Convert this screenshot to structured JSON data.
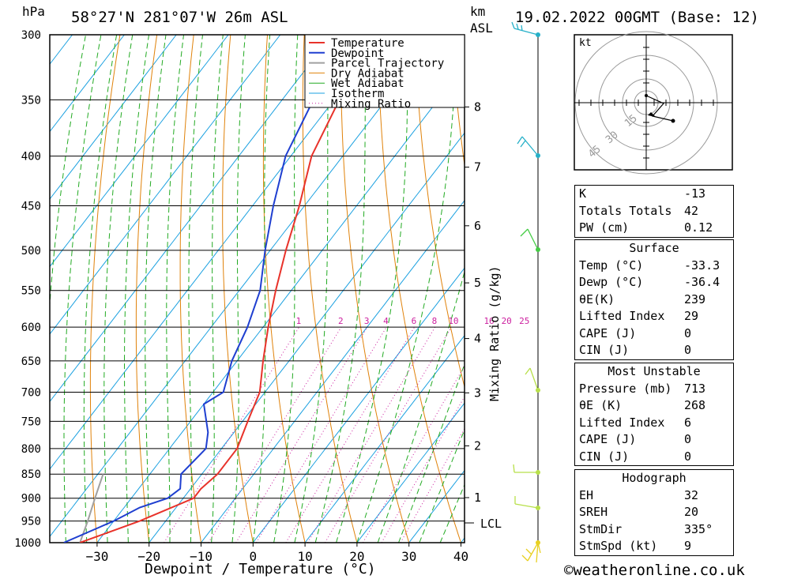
{
  "header": {
    "location": "58°27'N  281°07'W  26m  ASL",
    "datetime": "19.02.2022  00GMT  (Base: 12)",
    "hpa_label": "hPa",
    "km_label": "km",
    "asl_label": "ASL"
  },
  "chart_data": {
    "type": "skew-t",
    "xlabel": "Dewpoint / Temperature (°C)",
    "y2label": "Mixing Ratio (g/kg)",
    "pressure_levels": [
      300,
      350,
      400,
      450,
      500,
      550,
      600,
      650,
      700,
      750,
      800,
      850,
      900,
      950,
      1000
    ],
    "temp_ticks": [
      -30,
      -20,
      -10,
      0,
      10,
      20,
      30,
      40
    ],
    "km_ticks": [
      1,
      2,
      3,
      4,
      5,
      6,
      7,
      8
    ],
    "lcl_label": "LCL",
    "mixing_ratio_labels": [
      "1",
      "2",
      "3",
      "4",
      "6",
      "8",
      "10",
      "16",
      "20",
      "25"
    ],
    "legend": [
      "Temperature",
      "Dewpoint",
      "Parcel Trajectory",
      "Dry Adiabat",
      "Wet Adiabat",
      "Isotherm",
      "Mixing Ratio"
    ],
    "colors": {
      "temperature": "#e8322a",
      "dewpoint": "#1f3fd0",
      "parcel": "#a0a0a0",
      "dry_adiabat": "#e0820a",
      "wet_adiabat": "#22aa22",
      "isotherm": "#1aa0e0",
      "mixing_ratio": "#cc1f9f"
    },
    "temperature": [
      {
        "p": 1000,
        "t": -33.3
      },
      {
        "p": 950,
        "t": -25
      },
      {
        "p": 900,
        "t": -18
      },
      {
        "p": 880,
        "t": -18
      },
      {
        "p": 850,
        "t": -17
      },
      {
        "p": 800,
        "t": -17
      },
      {
        "p": 750,
        "t": -19
      },
      {
        "p": 700,
        "t": -21
      },
      {
        "p": 650,
        "t": -25
      },
      {
        "p": 600,
        "t": -29
      },
      {
        "p": 550,
        "t": -33
      },
      {
        "p": 500,
        "t": -37
      },
      {
        "p": 450,
        "t": -41
      },
      {
        "p": 400,
        "t": -46
      },
      {
        "p": 350,
        "t": -49
      },
      {
        "p": 320,
        "t": -51
      },
      {
        "p": 310,
        "t": -50
      },
      {
        "p": 300,
        "t": -50
      }
    ],
    "dewpoint": [
      {
        "p": 1000,
        "t": -36.4
      },
      {
        "p": 950,
        "t": -30
      },
      {
        "p": 920,
        "t": -27
      },
      {
        "p": 900,
        "t": -23
      },
      {
        "p": 880,
        "t": -22
      },
      {
        "p": 850,
        "t": -24
      },
      {
        "p": 800,
        "t": -23
      },
      {
        "p": 770,
        "t": -25
      },
      {
        "p": 720,
        "t": -30
      },
      {
        "p": 700,
        "t": -28
      },
      {
        "p": 650,
        "t": -31
      },
      {
        "p": 600,
        "t": -33
      },
      {
        "p": 550,
        "t": -36
      },
      {
        "p": 500,
        "t": -41
      },
      {
        "p": 450,
        "t": -46
      },
      {
        "p": 400,
        "t": -51
      },
      {
        "p": 350,
        "t": -54
      },
      {
        "p": 320,
        "t": -56
      },
      {
        "p": 300,
        "t": -56
      }
    ],
    "parcel": [
      {
        "p": 1000,
        "t": -33.3
      },
      {
        "p": 950,
        "t": -35
      },
      {
        "p": 900,
        "t": -37
      },
      {
        "p": 850,
        "t": -39
      }
    ]
  },
  "hodograph": {
    "unit_label": "kt",
    "ring_labels": [
      "15",
      "30",
      "45"
    ]
  },
  "indices": {
    "k": {
      "label": "K",
      "value": "-13"
    },
    "tt": {
      "label": "Totals Totals",
      "value": "42"
    },
    "pw": {
      "label": "PW (cm)",
      "value": "0.12"
    }
  },
  "surface": {
    "title": "Surface",
    "temp": {
      "label": "Temp (°C)",
      "value": "-33.3"
    },
    "dewp": {
      "label": "Dewp (°C)",
      "value": "-36.4"
    },
    "theta": {
      "label": "θE(K)",
      "value": "239"
    },
    "li": {
      "label": "Lifted Index",
      "value": "29"
    },
    "cape": {
      "label": "CAPE (J)",
      "value": "0"
    },
    "cin": {
      "label": "CIN (J)",
      "value": "0"
    }
  },
  "most_unstable": {
    "title": "Most Unstable",
    "pressure": {
      "label": "Pressure (mb)",
      "value": "713"
    },
    "theta": {
      "label": "θE (K)",
      "value": "268"
    },
    "li": {
      "label": "Lifted Index",
      "value": "6"
    },
    "cape": {
      "label": "CAPE (J)",
      "value": "0"
    },
    "cin": {
      "label": "CIN (J)",
      "value": "0"
    }
  },
  "hodograph_table": {
    "title": "Hodograph",
    "eh": {
      "label": "EH",
      "value": "32"
    },
    "sreh": {
      "label": "SREH",
      "value": "20"
    },
    "stmdir": {
      "label": "StmDir",
      "value": "335°"
    },
    "stmspd": {
      "label": "StmSpd (kt)",
      "value": "9"
    }
  },
  "footer": {
    "credit": "©weatheronline.co.uk"
  }
}
